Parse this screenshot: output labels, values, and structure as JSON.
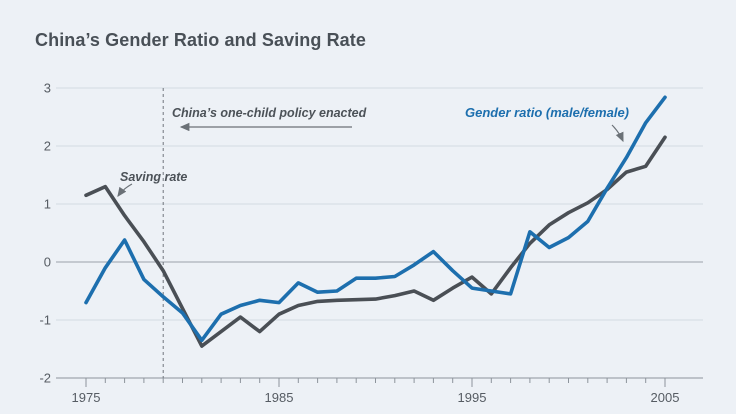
{
  "title": "China’s Gender Ratio and Saving Rate",
  "colors": {
    "background": "#edf1f6",
    "title_text": "#495057",
    "gridline": "#d4dae1",
    "zero_line": "#9aa1a9",
    "axis": "#8d949c",
    "saving_rate_line": "#4a4f55",
    "gender_ratio_line": "#1d6fae",
    "annotation_text": "#4c5258"
  },
  "chart_data": {
    "type": "line",
    "title": "China’s Gender Ratio and Saving Rate",
    "x": [
      1975,
      1976,
      1977,
      1978,
      1979,
      1980,
      1981,
      1982,
      1983,
      1984,
      1985,
      1986,
      1987,
      1988,
      1989,
      1990,
      1991,
      1992,
      1993,
      1994,
      1995,
      1996,
      1997,
      1998,
      1999,
      2000,
      2001,
      2002,
      2003,
      2004,
      2005
    ],
    "series": [
      {
        "name": "Saving rate",
        "color": "#4a4f55",
        "values": [
          1.15,
          1.3,
          0.8,
          0.35,
          -0.15,
          -0.8,
          -1.45,
          -1.2,
          -0.95,
          -1.2,
          -0.9,
          -0.75,
          -0.68,
          -0.66,
          -0.65,
          -0.64,
          -0.58,
          -0.5,
          -0.66,
          -0.45,
          -0.26,
          -0.55,
          -0.1,
          0.32,
          0.64,
          0.85,
          1.02,
          1.25,
          1.55,
          1.65,
          2.15
        ]
      },
      {
        "name": "Gender ratio (male/female)",
        "color": "#1d6fae",
        "values": [
          -0.7,
          -0.1,
          0.38,
          -0.3,
          -0.6,
          -0.88,
          -1.35,
          -0.9,
          -0.75,
          -0.66,
          -0.7,
          -0.36,
          -0.52,
          -0.5,
          -0.28,
          -0.28,
          -0.25,
          -0.05,
          0.18,
          -0.15,
          -0.45,
          -0.5,
          -0.55,
          0.52,
          0.25,
          0.42,
          0.7,
          1.27,
          1.8,
          2.4,
          2.84
        ]
      }
    ],
    "xlim": [
      1975,
      2006
    ],
    "ylim": [
      -2,
      3
    ],
    "yticks": [
      3,
      2,
      1,
      0,
      -1,
      -2
    ],
    "xtick_labels": [
      1975,
      1985,
      1995,
      2005
    ],
    "grid": true,
    "legend_position": "inline-annotations",
    "annotations": {
      "policy": {
        "label": "China’s one-child policy enacted",
        "year": 1979
      },
      "saving": {
        "label": "Saving rate"
      },
      "gender": {
        "label": "Gender ratio (male/female)"
      }
    }
  }
}
